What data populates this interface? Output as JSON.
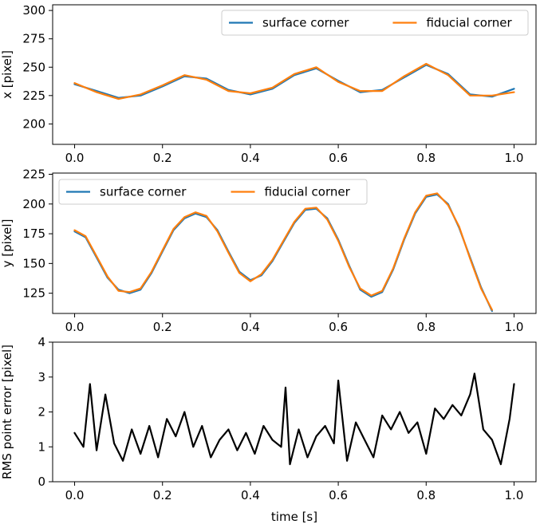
{
  "chart_data": [
    {
      "type": "line",
      "xlabel": "",
      "ylabel": "x [pixel]",
      "xlim": [
        -0.05,
        1.05
      ],
      "ylim": [
        182,
        305
      ],
      "xticks": [
        "0.0",
        "0.2",
        "0.4",
        "0.6",
        "0.8",
        "1.0"
      ],
      "yticks": [
        "200",
        "225",
        "250",
        "275",
        "300"
      ],
      "legend_position": "upper right",
      "legend_layout": "two-column",
      "x": [
        0.0,
        0.05,
        0.1,
        0.15,
        0.2,
        0.25,
        0.3,
        0.35,
        0.4,
        0.45,
        0.5,
        0.55,
        0.6,
        0.65,
        0.7,
        0.75,
        0.8,
        0.85,
        0.9,
        0.95,
        1.0
      ],
      "series": [
        {
          "name": "surface corner",
          "color": "#1f77b4",
          "values": [
            235,
            229,
            223,
            225,
            233,
            242,
            240,
            230,
            226,
            231,
            243,
            249,
            238,
            228,
            230,
            241,
            252,
            244,
            226,
            224,
            231
          ]
        },
        {
          "name": "fiducial corner",
          "color": "#ff7f0e",
          "values": [
            236,
            228,
            222,
            226,
            234,
            243,
            239,
            229,
            227,
            232,
            244,
            250,
            237,
            229,
            229,
            242,
            253,
            243,
            225,
            225,
            228
          ]
        }
      ]
    },
    {
      "type": "line",
      "xlabel": "",
      "ylabel": "y [pixel]",
      "xlim": [
        -0.05,
        1.05
      ],
      "ylim": [
        108,
        226
      ],
      "xticks": [
        "0.0",
        "0.2",
        "0.4",
        "0.6",
        "0.8",
        "1.0"
      ],
      "yticks": [
        "125",
        "150",
        "175",
        "200",
        "225"
      ],
      "legend_position": "upper left",
      "legend_layout": "two-column",
      "x": [
        0.0,
        0.025,
        0.05,
        0.075,
        0.1,
        0.125,
        0.15,
        0.175,
        0.2,
        0.225,
        0.25,
        0.275,
        0.3,
        0.325,
        0.35,
        0.375,
        0.4,
        0.425,
        0.45,
        0.475,
        0.5,
        0.525,
        0.55,
        0.575,
        0.6,
        0.625,
        0.65,
        0.675,
        0.7,
        0.725,
        0.75,
        0.775,
        0.8,
        0.825,
        0.85,
        0.875,
        0.9,
        0.925,
        0.95
      ],
      "series": [
        {
          "name": "surface corner",
          "color": "#1f77b4",
          "values": [
            177,
            172,
            155,
            138,
            128,
            125,
            128,
            142,
            160,
            178,
            188,
            192,
            189,
            178,
            160,
            143,
            136,
            140,
            152,
            168,
            184,
            195,
            196,
            188,
            170,
            148,
            128,
            122,
            126,
            145,
            170,
            192,
            206,
            208,
            200,
            180,
            155,
            130,
            110
          ]
        },
        {
          "name": "fiducial corner",
          "color": "#ff7f0e",
          "values": [
            178,
            173,
            156,
            139,
            127,
            126,
            129,
            143,
            161,
            179,
            189,
            193,
            190,
            177,
            159,
            142,
            135,
            141,
            153,
            169,
            185,
            196,
            197,
            187,
            169,
            147,
            129,
            123,
            127,
            146,
            171,
            193,
            207,
            209,
            199,
            181,
            154,
            129,
            111
          ]
        }
      ]
    },
    {
      "type": "line",
      "xlabel": "time [s]",
      "ylabel": "RMS point error [pixel]",
      "xlim": [
        -0.05,
        1.05
      ],
      "ylim": [
        0,
        4
      ],
      "xticks": [
        "0.0",
        "0.2",
        "0.4",
        "0.6",
        "0.8",
        "1.0"
      ],
      "yticks": [
        "0",
        "1",
        "2",
        "3",
        "4"
      ],
      "x": [
        0.0,
        0.02,
        0.035,
        0.05,
        0.07,
        0.09,
        0.11,
        0.13,
        0.15,
        0.17,
        0.19,
        0.21,
        0.23,
        0.25,
        0.27,
        0.29,
        0.31,
        0.33,
        0.35,
        0.37,
        0.39,
        0.41,
        0.43,
        0.45,
        0.47,
        0.48,
        0.49,
        0.51,
        0.53,
        0.55,
        0.57,
        0.59,
        0.6,
        0.62,
        0.64,
        0.66,
        0.68,
        0.7,
        0.72,
        0.74,
        0.76,
        0.78,
        0.8,
        0.82,
        0.84,
        0.86,
        0.88,
        0.9,
        0.91,
        0.93,
        0.95,
        0.97,
        0.99,
        1.0
      ],
      "series": [
        {
          "name": "",
          "color": "#000000",
          "values": [
            1.4,
            1.0,
            2.8,
            0.9,
            2.5,
            1.1,
            0.6,
            1.5,
            0.8,
            1.6,
            0.7,
            1.8,
            1.3,
            2.0,
            1.0,
            1.6,
            0.7,
            1.2,
            1.5,
            0.9,
            1.4,
            0.8,
            1.6,
            1.2,
            1.0,
            2.7,
            0.5,
            1.5,
            0.7,
            1.3,
            1.6,
            1.1,
            2.9,
            0.6,
            1.7,
            1.2,
            0.7,
            1.9,
            1.5,
            2.0,
            1.4,
            1.7,
            0.8,
            2.1,
            1.8,
            2.2,
            1.9,
            2.5,
            3.1,
            1.5,
            1.2,
            0.5,
            1.8,
            2.8
          ]
        }
      ]
    }
  ]
}
